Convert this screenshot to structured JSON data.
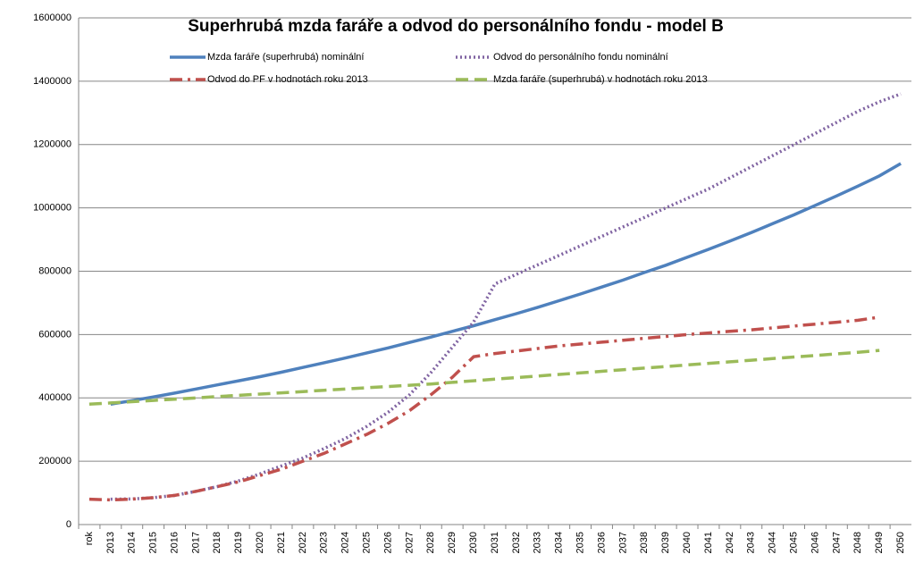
{
  "chart_data": {
    "type": "line",
    "title": "Superhrubá mzda faráře a odvod do personálního fondu - model B",
    "categories": [
      "rok",
      "2013",
      "2014",
      "2015",
      "2016",
      "2017",
      "2018",
      "2019",
      "2020",
      "2021",
      "2022",
      "2023",
      "2024",
      "2025",
      "2026",
      "2027",
      "2028",
      "2029",
      "2030",
      "2031",
      "2032",
      "2033",
      "2034",
      "2035",
      "2036",
      "2037",
      "2038",
      "2039",
      "2040",
      "2041",
      "2042",
      "2043",
      "2044",
      "2045",
      "2046",
      "2047",
      "2048",
      "2049",
      "2050"
    ],
    "series": [
      {
        "name": "Mzda faráře (superhrubá) nominální",
        "color": "#4f81bd",
        "style": "solid",
        "values": [
          null,
          380000,
          391000,
          403000,
          415000,
          428000,
          441000,
          454000,
          467000,
          481000,
          496000,
          511000,
          526000,
          542000,
          558000,
          575000,
          592000,
          610000,
          628000,
          647000,
          666000,
          686000,
          707000,
          728000,
          750000,
          772000,
          796000,
          819000,
          844000,
          869000,
          895000,
          922000,
          950000,
          978000,
          1008000,
          1038000,
          1069000,
          1101000,
          1140000
        ]
      },
      {
        "name": "Odvod do personálního fondu nominální",
        "color": "#8064a2",
        "style": "dotted",
        "values": [
          null,
          80000,
          81000,
          85000,
          92000,
          105000,
          120000,
          138000,
          160000,
          185000,
          210000,
          240000,
          272000,
          310000,
          355000,
          410000,
          480000,
          560000,
          640000,
          760000,
          790000,
          820000,
          850000,
          880000,
          910000,
          940000,
          970000,
          1000000,
          1030000,
          1060000,
          1095000,
          1130000,
          1165000,
          1200000,
          1235000,
          1270000,
          1305000,
          1335000,
          1360000
        ]
      },
      {
        "name": "Odvod do PF v hodnotách roku 2013",
        "color": "#c0504d",
        "style": "dashdot",
        "values": [
          80000,
          78000,
          80000,
          85000,
          92000,
          105000,
          120000,
          135000,
          155000,
          175000,
          200000,
          225000,
          255000,
          285000,
          320000,
          360000,
          410000,
          465000,
          530000,
          540000,
          548000,
          556000,
          564000,
          570000,
          576000,
          582000,
          588000,
          594000,
          600000,
          605000,
          610000,
          615000,
          621000,
          627000,
          633000,
          639000,
          645000,
          655000,
          null
        ]
      },
      {
        "name": "Mzda faráře (superhrubá) v hodnotách roku 2013",
        "color": "#9bbb59",
        "style": "dashed",
        "values": [
          380000,
          384000,
          388000,
          392000,
          396000,
          400000,
          404000,
          408000,
          412000,
          416000,
          420000,
          424000,
          428000,
          432000,
          436000,
          440000,
          444000,
          449000,
          454000,
          459000,
          464000,
          469000,
          474000,
          479000,
          484000,
          489000,
          494000,
          499000,
          504000,
          509000,
          514000,
          519000,
          524000,
          529000,
          534000,
          539000,
          544000,
          550000,
          null
        ]
      }
    ],
    "ylim": [
      0,
      1600000
    ],
    "yticks": [
      0,
      200000,
      400000,
      600000,
      800000,
      1000000,
      1200000,
      1400000,
      1600000
    ],
    "grid": true
  }
}
